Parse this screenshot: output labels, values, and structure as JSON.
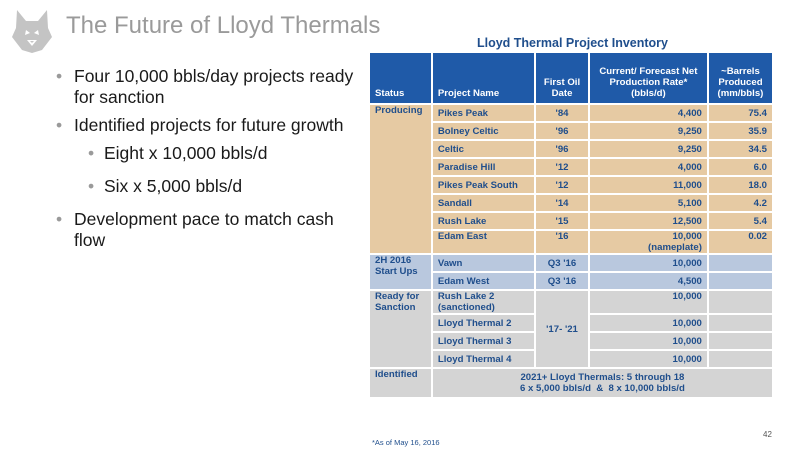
{
  "slide": {
    "title": "The Future of Lloyd Thermals",
    "page_number": "42",
    "footnote": "*As of May 16, 2016"
  },
  "bullets": [
    {
      "text": "Four 10,000 bbls/day projects ready for sanction",
      "level": 1
    },
    {
      "text": "Identified projects for future growth",
      "level": 1
    },
    {
      "text": "Eight x 10,000 bbls/d",
      "level": 2
    },
    {
      "text": "Six x 5,000 bbls/d",
      "level": 2
    },
    {
      "text": "Development pace to match cash flow",
      "level": 1
    }
  ],
  "table": {
    "title": "Lloyd Thermal Project Inventory",
    "headers": {
      "status": "Status",
      "project": "Project Name",
      "first_oil": "First Oil Date",
      "rate": "Current/ Forecast Net Production Rate* (bbls/d)",
      "produced": "~Barrels Produced (mm/bbls)"
    },
    "producing": {
      "status": "Producing",
      "rows": [
        {
          "name": "Pikes Peak",
          "date": "'84",
          "rate": "4,400",
          "produced": "75.4"
        },
        {
          "name": "Bolney Celtic",
          "date": "'96",
          "rate": "9,250",
          "produced": "35.9"
        },
        {
          "name": "Celtic",
          "date": "'96",
          "rate": "9,250",
          "produced": "34.5"
        },
        {
          "name": "Paradise Hill",
          "date": "'12",
          "rate": "4,000",
          "produced": "6.0"
        },
        {
          "name": "Pikes Peak South",
          "date": "'12",
          "rate": "11,000",
          "produced": "18.0"
        },
        {
          "name": "Sandall",
          "date": "'14",
          "rate": "5,100",
          "produced": "4.2"
        },
        {
          "name": "Rush Lake",
          "date": "'15",
          "rate": "12,500",
          "produced": "5.4"
        },
        {
          "name": "Edam East",
          "date": "'16",
          "rate": "10,000",
          "rate_note": "(nameplate)",
          "produced": "0.02"
        }
      ]
    },
    "startups": {
      "status": "2H 2016 Start Ups",
      "rows": [
        {
          "name": "Vawn",
          "date": "Q3 '16",
          "rate": "10,000",
          "produced": ""
        },
        {
          "name": "Edam West",
          "date": "Q3 '16",
          "rate": "4,500",
          "produced": ""
        }
      ]
    },
    "ready": {
      "status": "Ready for Sanction",
      "date": "'17- '21",
      "rows": [
        {
          "name": "Rush Lake 2 (sanctioned)",
          "rate": "10,000"
        },
        {
          "name": "Lloyd Thermal 2",
          "rate": "10,000"
        },
        {
          "name": "Lloyd Thermal 3",
          "rate": "10,000"
        },
        {
          "name": "Lloyd Thermal 4",
          "rate": "10,000"
        }
      ]
    },
    "identified": {
      "status": "Identified",
      "line1": "2021+ Lloyd Thermals: 5 through 18",
      "line2": "6 x 5,000 bbls/d  &  8 x 10,000 bbls/d"
    }
  },
  "colors": {
    "header_blue": "#1f5aa8",
    "producing_tan": "#e6caa3",
    "startups_blue": "#b9c8de",
    "ready_gray": "#d4d4d4",
    "text_blue": "#1f4e8c",
    "title_gray": "#9a9a9a"
  },
  "icons": {
    "logo": "husky-dog-logo"
  }
}
